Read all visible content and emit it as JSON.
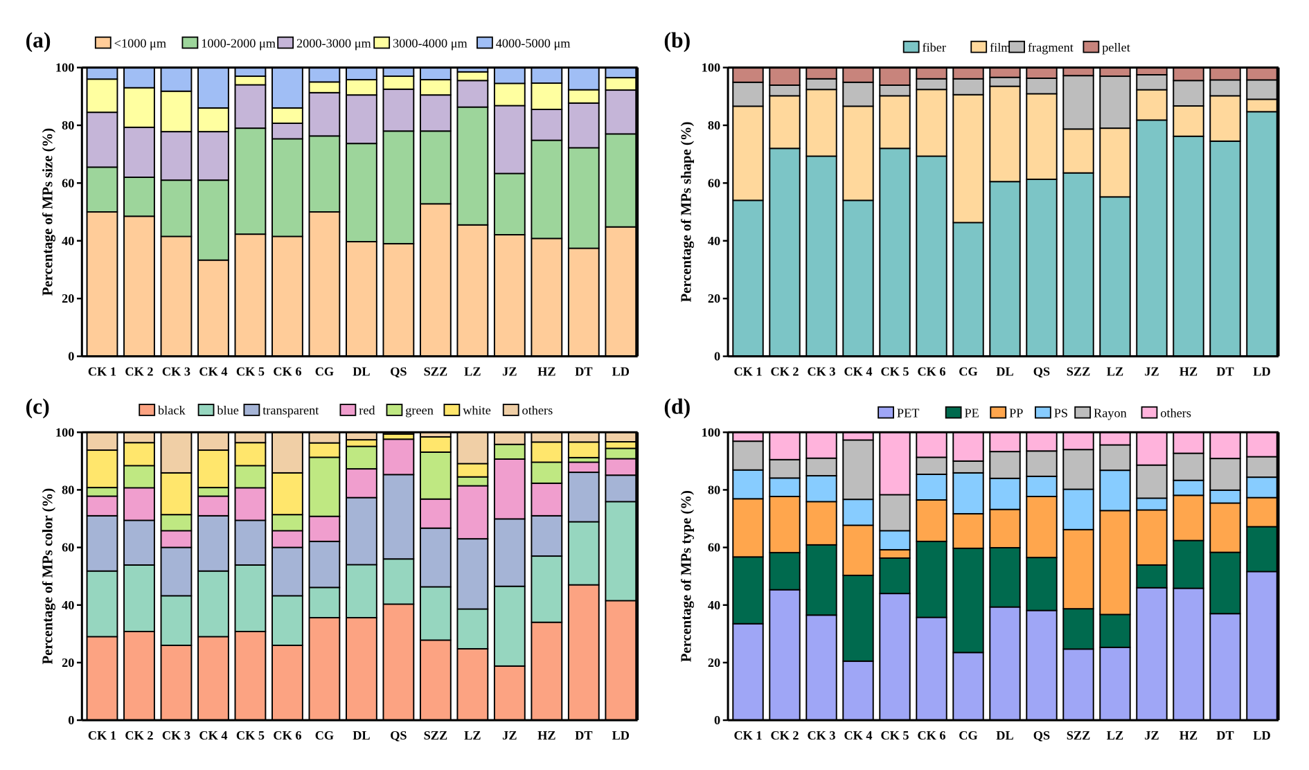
{
  "chart_data": [
    {
      "type": "bar",
      "stacked": true,
      "panel_label": "(a)",
      "title": "",
      "xlabel": "",
      "ylabel": "Percentage of MPs size (%)",
      "ylim": [
        0,
        100
      ],
      "yticks": [
        0,
        20,
        40,
        60,
        80,
        100
      ],
      "legend_position": "top",
      "categories": [
        "CK 1",
        "CK 2",
        "CK 3",
        "CK 4",
        "CK 5",
        "CK 6",
        "CG",
        "DL",
        "QS",
        "SZZ",
        "LZ",
        "JZ",
        "HZ",
        "DT",
        "LD"
      ],
      "series": [
        {
          "name": "<1000 μm",
          "color": "#FFCC99",
          "values": [
            50,
            48.5,
            41.5,
            33.3,
            42.3,
            41.5,
            50,
            39.7,
            39,
            52.8,
            45.5,
            42.1,
            40.8,
            37.4,
            44.8
          ]
        },
        {
          "name": "1000-2000 μm",
          "color": "#9DD59B",
          "values": [
            15.5,
            13.5,
            19.5,
            27.7,
            36.7,
            33.8,
            26.3,
            34,
            39,
            25.2,
            40.8,
            21.2,
            34,
            34.8,
            32.2
          ]
        },
        {
          "name": "2000-3000 μm",
          "color": "#C5B5D8",
          "values": [
            19,
            17.3,
            16.8,
            16.8,
            15,
            5.4,
            15,
            16.8,
            14.5,
            12.5,
            9.2,
            23.5,
            10.7,
            15.5,
            15.2
          ]
        },
        {
          "name": "3000-4000 μm",
          "color": "#FFFFA0",
          "values": [
            11.5,
            13.7,
            14,
            8.2,
            3,
            5.3,
            3.7,
            5.3,
            4.5,
            5.3,
            3,
            7.7,
            9.1,
            4.6,
            4.3
          ]
        },
        {
          "name": "4000-5000 μm",
          "color": "#A0BEF5",
          "values": [
            4,
            7,
            8.2,
            14,
            3,
            14,
            5,
            4.2,
            3,
            4.2,
            1.5,
            5.5,
            5.4,
            7.7,
            3.5
          ]
        }
      ]
    },
    {
      "type": "bar",
      "stacked": true,
      "panel_label": "(b)",
      "title": "",
      "xlabel": "",
      "ylabel": "Percentage of MPs shape (%)",
      "ylim": [
        0,
        100
      ],
      "yticks": [
        0,
        20,
        40,
        60,
        80,
        100
      ],
      "legend_position": "top",
      "categories": [
        "CK 1",
        "CK 2",
        "CK 3",
        "CK 4",
        "CK 5",
        "CK 6",
        "CG",
        "DL",
        "QS",
        "SZZ",
        "LZ",
        "JZ",
        "HZ",
        "DT",
        "LD"
      ],
      "series": [
        {
          "name": "fiber",
          "color": "#7CC5C6",
          "values": [
            54,
            72,
            69.3,
            54,
            72,
            69.3,
            46.3,
            60.5,
            61.3,
            63.5,
            55.2,
            81.8,
            76.2,
            74.5,
            84.7
          ]
        },
        {
          "name": "film",
          "color": "#FFD89C",
          "values": [
            32.6,
            18.2,
            23.1,
            32.6,
            18.2,
            23.1,
            44.3,
            33,
            29.6,
            15.2,
            23.8,
            10.5,
            10.5,
            15.7,
            4.3
          ]
        },
        {
          "name": "fragment",
          "color": "#BDBDBD",
          "values": [
            8.3,
            3.7,
            3.7,
            8.3,
            3.7,
            3.7,
            5.5,
            3.1,
            5.4,
            18.5,
            18,
            5.2,
            8.8,
            5.5,
            6.7
          ]
        },
        {
          "name": "pellet",
          "color": "#C8847C",
          "values": [
            5.1,
            6.1,
            3.9,
            5.1,
            6.1,
            3.9,
            3.9,
            3.4,
            3.7,
            2.8,
            3,
            2.5,
            4.5,
            4.3,
            4.3
          ]
        }
      ]
    },
    {
      "type": "bar",
      "stacked": true,
      "panel_label": "(c)",
      "title": "",
      "xlabel": "",
      "ylabel": "Percentage of MPs color (%)",
      "ylim": [
        0,
        100
      ],
      "yticks": [
        0,
        20,
        40,
        60,
        80,
        100
      ],
      "legend_position": "top",
      "categories": [
        "CK 1",
        "CK 2",
        "CK 3",
        "CK 4",
        "CK 5",
        "CK 6",
        "CG",
        "DL",
        "QS",
        "SZZ",
        "LZ",
        "JZ",
        "HZ",
        "DT",
        "LD"
      ],
      "series": [
        {
          "name": "black",
          "color": "#FCA382",
          "values": [
            29,
            30.8,
            26,
            29,
            30.8,
            26,
            35.6,
            35.6,
            40.3,
            27.8,
            24.8,
            18.8,
            34,
            47,
            41.5
          ]
        },
        {
          "name": "blue",
          "color": "#96D6BF",
          "values": [
            22.8,
            23.1,
            17.2,
            22.8,
            23.1,
            17.2,
            10.5,
            18.4,
            15.7,
            18.5,
            13.8,
            27.7,
            23,
            21.9,
            34.4
          ]
        },
        {
          "name": "transparent",
          "color": "#A5B4D6",
          "values": [
            19.2,
            15.5,
            16.8,
            19.2,
            15.5,
            16.8,
            16,
            23.3,
            29.3,
            20.4,
            24.4,
            23.4,
            14,
            17.2,
            9.2
          ]
        },
        {
          "name": "red",
          "color": "#F09ECE",
          "values": [
            6.8,
            11.3,
            5.8,
            6.8,
            11.3,
            5.8,
            8.7,
            10,
            12.3,
            10.1,
            18.4,
            20.8,
            11.3,
            3.5,
            5.7
          ]
        },
        {
          "name": "green",
          "color": "#BFE882",
          "values": [
            3,
            7.7,
            5.6,
            3,
            7.7,
            5.6,
            20.5,
            7.8,
            0,
            16.3,
            3.1,
            5.1,
            7.3,
            1.6,
            3.6
          ]
        },
        {
          "name": "white",
          "color": "#FFE66C",
          "values": [
            13,
            8,
            14.5,
            13,
            8,
            14.5,
            5,
            2.3,
            1.8,
            5.3,
            4.6,
            0,
            7,
            5.4,
            2.3
          ]
        },
        {
          "name": "others",
          "color": "#F0CFA6",
          "values": [
            6.2,
            3.6,
            14.1,
            6.2,
            3.6,
            14.1,
            3.7,
            2.6,
            0.6,
            1.6,
            10.9,
            4.2,
            3.4,
            3.4,
            3.3
          ]
        }
      ]
    },
    {
      "type": "bar",
      "stacked": true,
      "panel_label": "(d)",
      "title": "",
      "xlabel": "",
      "ylabel": "Percentage of MPs type (%)",
      "ylim": [
        0,
        100
      ],
      "yticks": [
        0,
        20,
        40,
        60,
        80,
        100
      ],
      "legend_position": "top",
      "categories": [
        "CK 1",
        "CK 2",
        "CK 3",
        "CK 4",
        "CK 5",
        "CK 6",
        "CG",
        "DL",
        "QS",
        "SZZ",
        "LZ",
        "JZ",
        "HZ",
        "DT",
        "LD"
      ],
      "series": [
        {
          "name": "PET",
          "color": "#9FA6F6",
          "values": [
            33.5,
            45.3,
            36.5,
            20.5,
            44,
            35.7,
            23.5,
            39.3,
            38.1,
            24.7,
            25.3,
            46,
            45.8,
            37,
            51.6
          ]
        },
        {
          "name": "PE",
          "color": "#006A4E",
          "values": [
            23.2,
            12.9,
            24.4,
            29.8,
            12.3,
            26.4,
            36.2,
            20.6,
            18.4,
            14,
            11.4,
            7.9,
            16.6,
            21.3,
            15.6
          ]
        },
        {
          "name": "PP",
          "color": "#FFA64D",
          "values": [
            20.2,
            19.5,
            15,
            17.4,
            2.9,
            14.4,
            12,
            13.3,
            21.2,
            27.5,
            36.1,
            19.1,
            15.7,
            17.1,
            10.1
          ]
        },
        {
          "name": "PS",
          "color": "#87CCFF",
          "values": [
            10,
            6.4,
            9,
            9,
            6.6,
            8.9,
            14.2,
            10.8,
            7,
            14,
            14,
            4.1,
            5.2,
            4.5,
            7.1
          ]
        },
        {
          "name": "Rayon",
          "color": "#BDBDBD",
          "values": [
            10,
            6.4,
            6.1,
            20.6,
            12.5,
            5.9,
            4.1,
            9.3,
            8.8,
            13.8,
            8.8,
            11.5,
            9.4,
            11,
            7.1
          ]
        },
        {
          "name": "others",
          "color": "#FFB3DC",
          "values": [
            3.1,
            9.5,
            9,
            2.7,
            21.7,
            8.7,
            10,
            6.7,
            6.5,
            6,
            4.4,
            11.4,
            7.3,
            9.1,
            8.5
          ]
        }
      ]
    }
  ]
}
